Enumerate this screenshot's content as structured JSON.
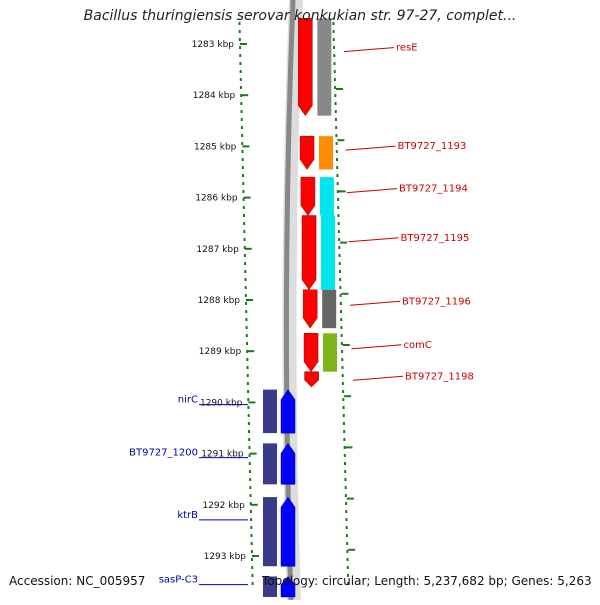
{
  "title": "Bacillus thuringiensis serovar konkukian str. 97-27, complet...",
  "footer": {
    "accession": "Accession: NC_005957",
    "summary": "Topology: circular; Length: 5,237,682 bp; Genes: 5,263"
  },
  "colors": {
    "forward_cds": "#ff0000",
    "reverse_cds": "#0000ff",
    "reverse_cog": "#3a3a8a",
    "ruler": "#1a7a1a",
    "backbone": "#888888",
    "forward_label": "#cc0000",
    "reverse_label": "#0000aa"
  },
  "scale": [
    {
      "label": "1283 kbp",
      "kbp": 1283
    },
    {
      "label": "1284 kbp",
      "kbp": 1284
    },
    {
      "label": "1285 kbp",
      "kbp": 1285
    },
    {
      "label": "1286 kbp",
      "kbp": 1286
    },
    {
      "label": "1287 kbp",
      "kbp": 1287
    },
    {
      "label": "1288 kbp",
      "kbp": 1288
    },
    {
      "label": "1289 kbp",
      "kbp": 1289
    },
    {
      "label": "1290 kbp",
      "kbp": 1290
    },
    {
      "label": "1291 kbp",
      "kbp": 1291
    },
    {
      "label": "1292 kbp",
      "kbp": 1292
    },
    {
      "label": "1293 kbp",
      "kbp": 1293
    }
  ],
  "forward_genes": [
    {
      "name": "resE",
      "start": 1282.5,
      "end": 1284.4,
      "cog": "#888888"
    },
    {
      "name": "BT9727_1193",
      "start": 1284.8,
      "end": 1285.45,
      "cog": "#ff8c00"
    },
    {
      "name": "BT9727_1194",
      "start": 1285.6,
      "end": 1286.35,
      "cog": "#00e5ee"
    },
    {
      "name": "BT9727_1195",
      "start": 1286.35,
      "end": 1287.8,
      "cog": "#00e5ee"
    },
    {
      "name": "BT9727_1196",
      "start": 1287.8,
      "end": 1288.55,
      "cog": "#666666"
    },
    {
      "name": "comC",
      "start": 1288.65,
      "end": 1289.4,
      "cog": "#7cb518"
    },
    {
      "name": "BT9727_1198",
      "start": 1289.4,
      "end": 1289.7,
      "cog": ""
    }
  ],
  "reverse_genes": [
    {
      "name": "nirC",
      "start": 1289.75,
      "end": 1290.6
    },
    {
      "name": "BT9727_1200",
      "start": 1290.8,
      "end": 1291.6
    },
    {
      "name": "ktrB",
      "start": 1291.85,
      "end": 1293.2
    },
    {
      "name": "sasP-C3",
      "start": 1293.4,
      "end": 1293.8
    }
  ]
}
